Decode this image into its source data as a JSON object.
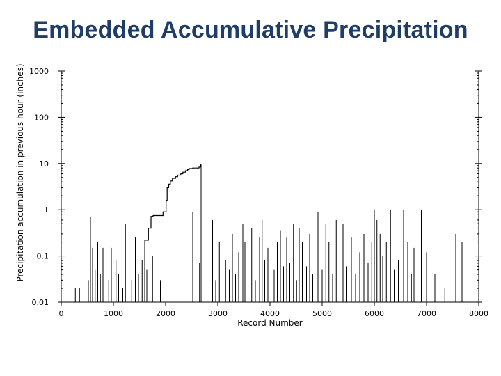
{
  "title": "Embedded Accumulative Precipitation",
  "chart_data": {
    "type": "line",
    "title": "Embedded Accumulative Precipitation",
    "xlabel": "Record Number",
    "ylabel": "Precipitation accumulation in previous hour (inches)",
    "xlim": [
      0,
      8000
    ],
    "ylim": [
      0.01,
      1000
    ],
    "yscale": "log",
    "x_ticks": [
      0,
      1000,
      2000,
      3000,
      4000,
      5000,
      6000,
      7000,
      8000
    ],
    "x_tick_labels": [
      "0",
      "1000",
      "2000",
      "3000",
      "4000",
      "5000",
      "6000",
      "7000",
      "8000"
    ],
    "y_ticks": [
      0.01,
      0.1,
      1,
      10,
      100,
      1000
    ],
    "y_tick_labels": [
      "0.01",
      "0.1",
      "1",
      "10",
      "100",
      "1000"
    ],
    "grid": false,
    "series": [
      {
        "x": [
          1600,
          1670,
          1670,
          1720,
          1720,
          1760,
          1760,
          1800,
          1800,
          1950,
          1950,
          2010,
          2010,
          2030,
          2030,
          2060,
          2060,
          2090,
          2090,
          2130,
          2130,
          2190,
          2190,
          2230,
          2230,
          2290,
          2290,
          2330,
          2330,
          2380,
          2380,
          2420,
          2420,
          2450,
          2450,
          2520,
          2520,
          2640,
          2640,
          2670,
          2670,
          2680
        ],
        "y": [
          0.22,
          0.22,
          0.4,
          0.4,
          0.72,
          0.72,
          0.75,
          0.75,
          0.75,
          0.75,
          0.9,
          0.9,
          1.6,
          1.6,
          3.0,
          3.0,
          3.6,
          3.6,
          4.2,
          4.2,
          4.8,
          4.8,
          5.2,
          5.2,
          5.6,
          5.6,
          6.0,
          6.0,
          6.5,
          6.5,
          7.0,
          7.0,
          7.4,
          7.4,
          7.8,
          7.8,
          8.0,
          8.0,
          8.4,
          8.4,
          9.5,
          9.5
        ]
      }
    ],
    "spikes_x": [
      270,
      300,
      350,
      380,
      420,
      520,
      560,
      600,
      650,
      700,
      750,
      800,
      860,
      910,
      960,
      1050,
      1100,
      1180,
      1230,
      1300,
      1350,
      1420,
      1480,
      1550,
      1600,
      1640,
      1700,
      1750,
      1900,
      2520,
      2650,
      2700,
      2900,
      2960,
      3030,
      3100,
      3150,
      3220,
      3280,
      3340,
      3400,
      3480,
      3520,
      3580,
      3650,
      3720,
      3800,
      3850,
      3900,
      3960,
      4020,
      4080,
      4140,
      4200,
      4260,
      4320,
      4380,
      4450,
      4510,
      4560,
      4620,
      4700,
      4760,
      4820,
      4920,
      5000,
      5070,
      5130,
      5200,
      5270,
      5340,
      5400,
      5460,
      5560,
      5640,
      5720,
      5800,
      5880,
      5950,
      6000,
      6050,
      6110,
      6160,
      6230,
      6310,
      6380,
      6460,
      6560,
      6640,
      6710,
      6760,
      6900,
      7000,
      7160,
      7350,
      7560,
      7680
    ],
    "spikes_y": [
      0.02,
      0.2,
      0.02,
      0.05,
      0.08,
      0.03,
      0.7,
      0.15,
      0.05,
      0.2,
      0.04,
      0.15,
      0.1,
      0.03,
      0.15,
      0.08,
      0.04,
      0.02,
      0.5,
      0.1,
      0.03,
      0.25,
      0.04,
      0.08,
      0.2,
      0.05,
      0.3,
      0.1,
      0.03,
      0.9,
      0.07,
      0.04,
      0.6,
      0.03,
      0.2,
      0.5,
      0.08,
      0.05,
      0.3,
      0.04,
      0.12,
      0.5,
      0.2,
      0.05,
      0.4,
      0.03,
      0.25,
      0.6,
      0.08,
      0.15,
      0.4,
      0.05,
      0.2,
      0.35,
      0.06,
      0.25,
      0.07,
      0.5,
      0.03,
      0.4,
      0.2,
      0.06,
      0.3,
      0.04,
      0.9,
      0.05,
      0.5,
      0.2,
      0.04,
      0.6,
      0.3,
      0.5,
      0.06,
      0.25,
      0.04,
      0.12,
      0.3,
      0.07,
      0.2,
      1.0,
      0.6,
      0.3,
      0.1,
      0.2,
      1.0,
      0.05,
      0.08,
      1.0,
      0.2,
      0.04,
      0.15,
      1.0,
      0.12,
      0.04,
      0.02,
      0.3,
      0.2
    ]
  }
}
